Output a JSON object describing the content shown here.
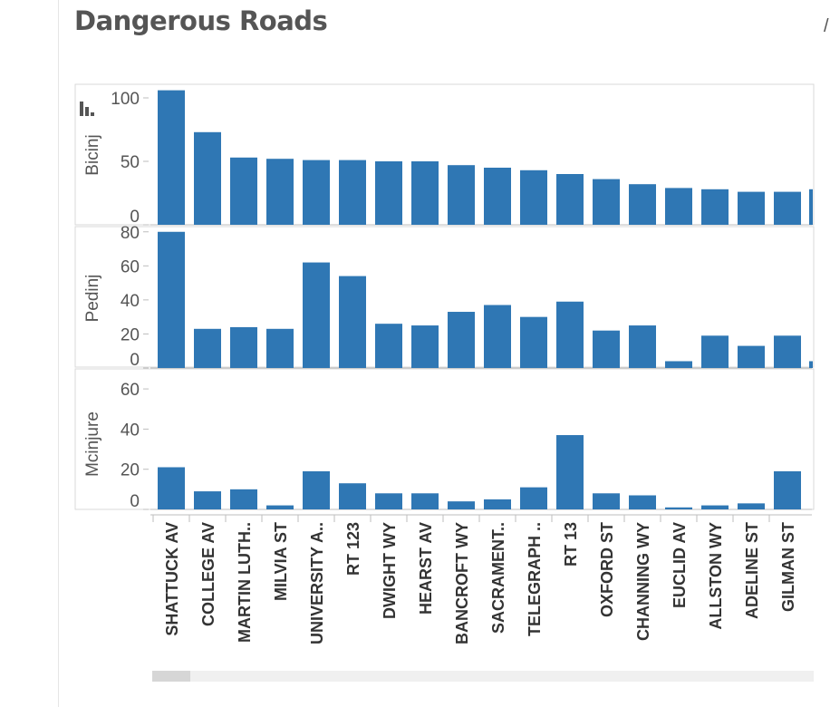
{
  "dashboard": {
    "title": "Dangerous Roads"
  },
  "chart_data": {
    "type": "bar",
    "categories": [
      "SHATTUCK AV",
      "COLLEGE AV",
      "MARTIN LUTH..",
      "MILVIA ST",
      "UNIVERSITY A..",
      "RT 123",
      "DWIGHT WY",
      "HEARST AV",
      "BANCROFT WY",
      "SACRAMENT..",
      "TELEGRAPH ..",
      "RT 13",
      "OXFORD ST",
      "CHANNING WY",
      "EUCLID AV",
      "ALLSTON WY",
      "ADELINE ST",
      "GILMAN ST"
    ],
    "series": [
      {
        "name": "Bicinj",
        "values": [
          106,
          73,
          53,
          52,
          51,
          51,
          50,
          50,
          47,
          45,
          43,
          40,
          36,
          32,
          29,
          28,
          26,
          26
        ],
        "ylim": [
          0,
          110
        ],
        "ticks": [
          0,
          50,
          100
        ]
      },
      {
        "name": "Pedinj",
        "values": [
          80,
          23,
          24,
          23,
          62,
          54,
          26,
          25,
          33,
          37,
          30,
          39,
          22,
          25,
          4,
          19,
          13,
          19
        ],
        "ylim": [
          0,
          82
        ],
        "ticks": [
          0,
          20,
          40,
          60,
          80
        ]
      },
      {
        "name": "Mcinjure",
        "values": [
          21,
          9,
          10,
          2,
          19,
          13,
          8,
          8,
          4,
          5,
          11,
          37,
          8,
          7,
          1,
          2,
          3,
          19
        ],
        "ylim": [
          0,
          65
        ],
        "ticks": [
          0,
          20,
          40,
          60
        ]
      }
    ],
    "color": "#2f77b4",
    "grid": false
  }
}
